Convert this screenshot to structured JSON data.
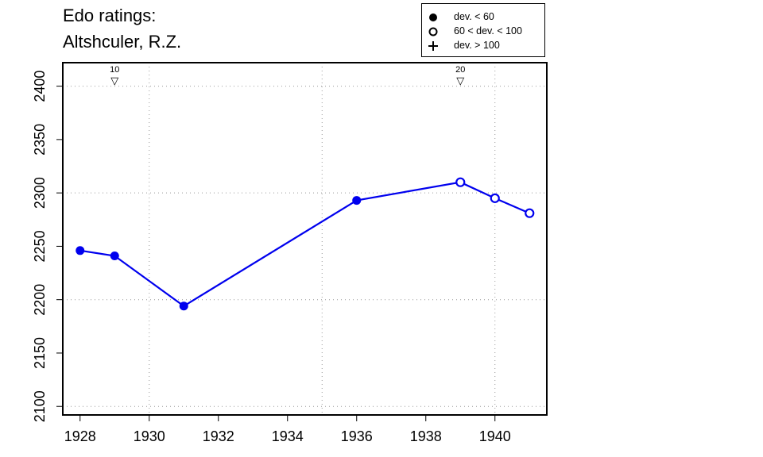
{
  "chart_data": {
    "type": "line",
    "title": "Edo ratings:",
    "subtitle": "Altshculer, R.Z.",
    "xlim": [
      1927.5,
      1941.5
    ],
    "ylim": [
      2092,
      2422
    ],
    "x_ticks": [
      1928,
      1930,
      1932,
      1934,
      1936,
      1938,
      1940
    ],
    "y_ticks": [
      2100,
      2150,
      2200,
      2250,
      2300,
      2350,
      2400
    ],
    "grid_x": [
      1930,
      1935,
      1940
    ],
    "grid_y": [
      2100,
      2200,
      2300,
      2400
    ],
    "series": [
      {
        "color": "#0000ee",
        "points": [
          {
            "x": 1928,
            "y": 2246,
            "dev": "< 60"
          },
          {
            "x": 1929,
            "y": 2241,
            "dev": "< 60"
          },
          {
            "x": 1931,
            "y": 2194,
            "dev": "< 60"
          },
          {
            "x": 1936,
            "y": 2293,
            "dev": "< 60"
          },
          {
            "x": 1939,
            "y": 2310,
            "dev": "60-100"
          },
          {
            "x": 1940,
            "y": 2295,
            "dev": "60-100"
          },
          {
            "x": 1941,
            "y": 2281,
            "dev": "60-100"
          }
        ]
      }
    ],
    "annotations": [
      {
        "x": 1929,
        "label": "10",
        "marker": "▽"
      },
      {
        "x": 1939,
        "label": "20",
        "marker": "▽"
      }
    ],
    "legend": {
      "placement": "top-right",
      "items": [
        {
          "symbol": "filled-circle",
          "label": "dev. < 60"
        },
        {
          "symbol": "open-circle",
          "label": "60 < dev. < 100"
        },
        {
          "symbol": "plus",
          "label": "dev. > 100"
        }
      ]
    }
  }
}
